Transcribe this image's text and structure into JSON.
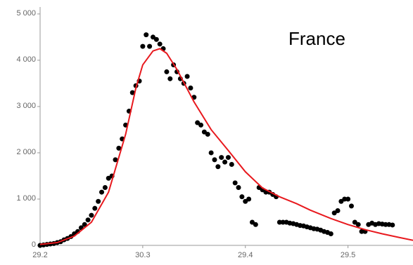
{
  "chart_data": {
    "type": "scatter",
    "annotation": "France",
    "xlim": [
      0,
      109
    ],
    "xticks": [
      {
        "value": 0,
        "label": "29.2"
      },
      {
        "value": 30,
        "label": "30.3"
      },
      {
        "value": 60,
        "label": "29.4"
      },
      {
        "value": 90,
        "label": "29.5"
      }
    ],
    "ylim": [
      0,
      5150
    ],
    "yticks": [
      0,
      {
        "value": 1000,
        "label": "1 000"
      },
      {
        "value": 2000,
        "label": "2 000"
      },
      {
        "value": 3000,
        "label": "3 000"
      },
      {
        "value": 4000,
        "label": "4 000"
      },
      {
        "value": 5000,
        "label": "5 000"
      }
    ],
    "series": [
      {
        "kind": "points",
        "color": "#000000",
        "x": [
          0,
          1,
          2,
          3,
          4,
          5,
          6,
          7,
          8,
          9,
          10,
          11,
          12,
          13,
          14,
          15,
          16,
          17,
          18,
          19,
          20,
          21,
          22,
          23,
          24,
          25,
          26,
          27,
          28,
          29,
          30,
          31,
          32,
          33,
          34,
          35,
          36,
          37,
          38,
          39,
          40,
          41,
          42,
          43,
          44,
          45,
          46,
          47,
          48,
          49,
          50,
          51,
          52,
          53,
          54,
          55,
          56,
          57,
          58,
          59,
          60,
          61,
          62,
          63,
          64,
          65,
          66,
          67,
          68,
          69,
          70,
          71,
          72,
          73,
          74,
          75,
          76,
          77,
          78,
          79,
          80,
          81,
          82,
          83,
          84,
          85,
          86,
          87,
          88,
          89,
          90,
          91,
          92,
          93,
          94,
          95,
          96,
          97,
          98,
          99,
          100,
          101,
          102,
          103
        ],
        "values": [
          0,
          10,
          20,
          30,
          40,
          60,
          80,
          120,
          150,
          190,
          250,
          300,
          380,
          450,
          550,
          650,
          800,
          950,
          1150,
          1250,
          1450,
          1500,
          1850,
          2100,
          2300,
          2600,
          2900,
          3300,
          3450,
          3550,
          4300,
          4550,
          4300,
          4500,
          4450,
          4350,
          4250,
          3750,
          3600,
          3900,
          3750,
          3600,
          3500,
          3650,
          3400,
          3200,
          2650,
          2600,
          2450,
          2400,
          2000,
          1850,
          1700,
          1900,
          1800,
          1900,
          1750,
          1350,
          1250,
          1050,
          950,
          1000,
          500,
          450,
          1250,
          1200,
          1150,
          1150,
          1100,
          1050,
          500,
          500,
          500,
          480,
          470,
          450,
          430,
          420,
          400,
          380,
          360,
          350,
          330,
          300,
          280,
          250,
          700,
          750,
          950,
          1000,
          1000,
          850,
          500,
          450,
          300,
          300,
          450,
          480,
          450,
          470,
          460,
          450,
          450,
          440
        ]
      },
      {
        "kind": "line",
        "color": "#e8191e",
        "x": [
          0,
          5,
          10,
          15,
          20,
          25,
          28,
          30,
          33,
          35,
          37,
          40,
          45,
          50,
          55,
          60,
          65,
          70,
          75,
          79,
          85,
          90,
          95,
          100,
          105,
          109
        ],
        "values": [
          20,
          60,
          200,
          500,
          1150,
          2400,
          3400,
          3900,
          4200,
          4250,
          4150,
          3800,
          3100,
          2500,
          2050,
          1590,
          1240,
          1050,
          900,
          760,
          580,
          450,
          340,
          250,
          170,
          110
        ]
      }
    ]
  }
}
